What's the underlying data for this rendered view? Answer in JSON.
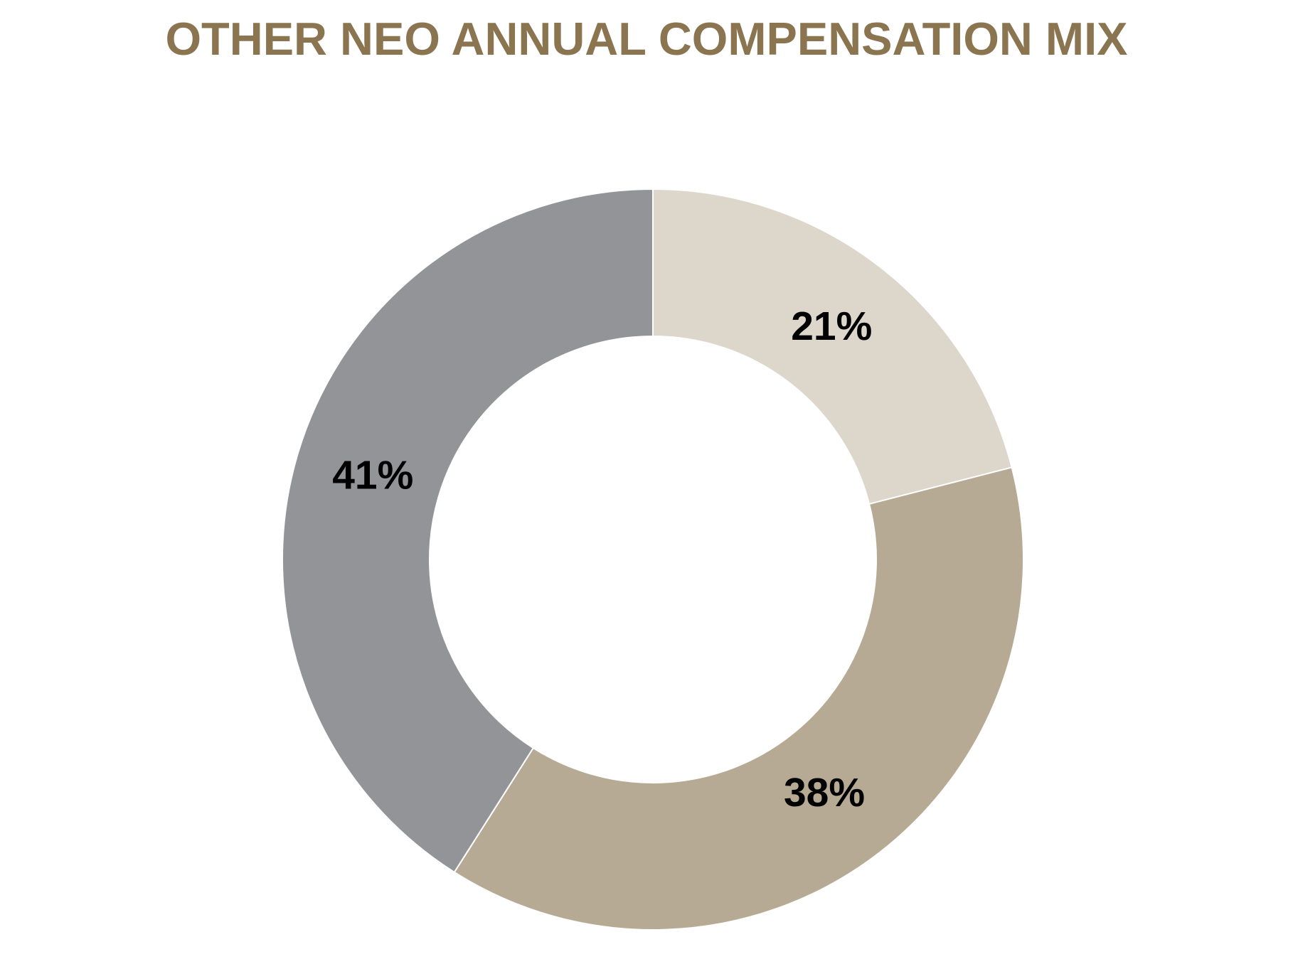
{
  "chart_data": {
    "type": "donut",
    "title": "OTHER NEO ANNUAL COMPENSATION MIX",
    "values": [
      21,
      38,
      41
    ],
    "value_labels": [
      "21%",
      "38%",
      "41%"
    ],
    "colors": [
      "#ddd6ca",
      "#b7aa94",
      "#939498"
    ]
  }
}
